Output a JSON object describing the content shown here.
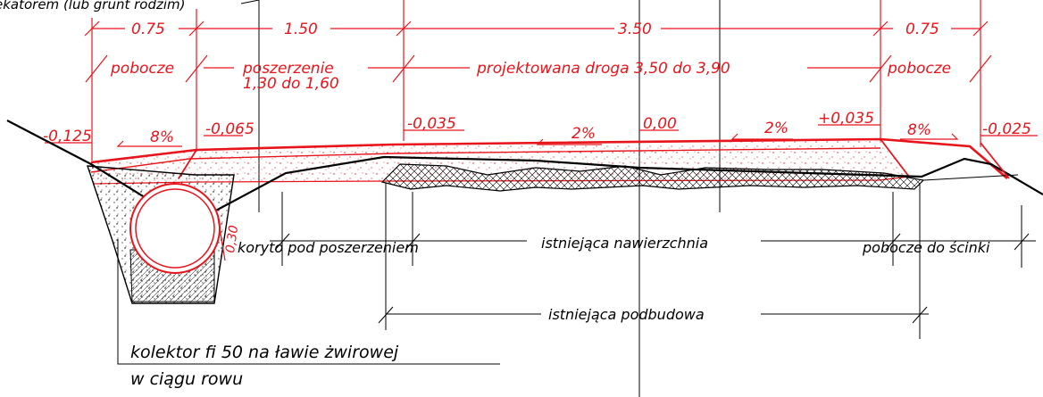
{
  "colors": {
    "red": "#e8141b",
    "black": "#000000",
    "background": "#ffffff"
  },
  "header_partial": "ekatorem (lub grunt rodzim)",
  "dimensions": [
    "0.75",
    "1.50",
    "3.50",
    "0.75"
  ],
  "zone_labels": {
    "pobocze_left": "pobocze",
    "poszerzenie_line1": "poszerzenie",
    "poszerzenie_line2": "1,30 do 1,60",
    "projektowana": "projektowana droga 3,50 do 3,90",
    "pobocze_right": "pobocze"
  },
  "elevations": [
    "-0,125",
    "-0,065",
    "-0,035",
    "0,00",
    "+0,035",
    "-0,025"
  ],
  "slopes": [
    "8%",
    "2%",
    "2%",
    "8%"
  ],
  "pipe_depth": "0,30",
  "layer_labels": {
    "koryto": "koryto pod poszerzeniem",
    "pobocze_sc": "pobocze do ścinki",
    "nawierzchnia": "istniejąca nawierzchnia",
    "podbudowa": "istniejąca podbudowa"
  },
  "collector_label": {
    "line1": "kolektor fi 50 na ławie żwirowej",
    "line2": "w ciągu rowu"
  }
}
